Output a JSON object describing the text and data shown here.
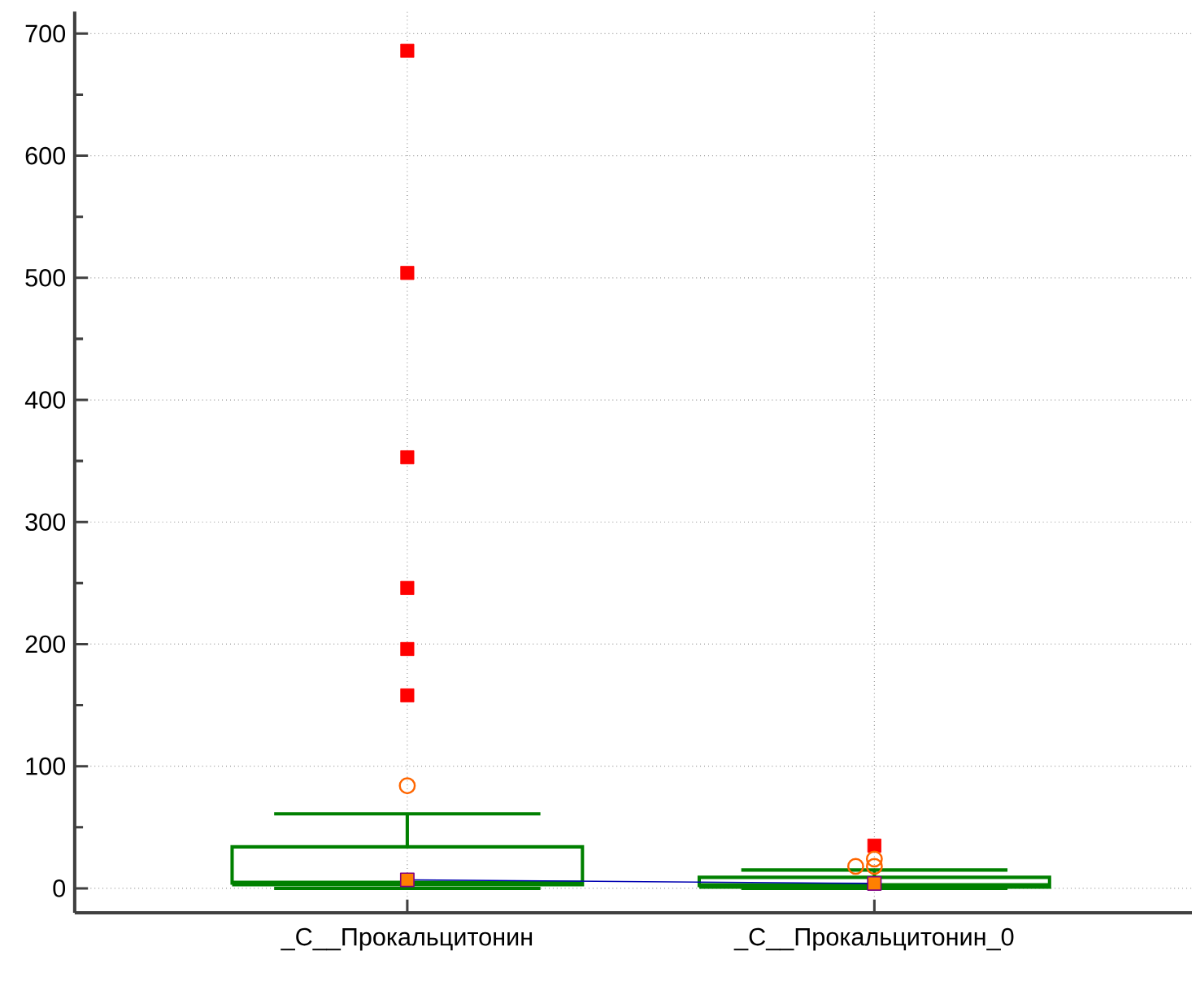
{
  "chart_data": {
    "type": "box",
    "categories": [
      "_C__Прокальцитонин",
      "_C__Прокальцитонин_0"
    ],
    "color": "#008000",
    "boxes": [
      {
        "low": 0,
        "q1": 3,
        "median": 5,
        "q3": 34,
        "high": 61,
        "outliers": [
          158,
          196,
          246,
          353,
          504,
          686
        ]
      },
      {
        "low": 0,
        "q1": 1,
        "median": 3,
        "q3": 9,
        "high": 15,
        "outliers": [
          35
        ]
      }
    ],
    "series": [
      {
        "type": "line",
        "color": "#0000b2",
        "marker": "square",
        "x": [
          "_C__Прокальцитонин",
          "_C__Прокальцитонин_0"
        ],
        "values": [
          7,
          4
        ]
      },
      {
        "type": "scatter",
        "color": "#ff6600",
        "marker": "circle",
        "x": [
          "_C__Прокальцитонин",
          "_C__Прокальцитонин_0",
          "_C__Прокальцитонин_0",
          "_C__Прокальцитонин_0"
        ],
        "values": [
          84,
          18,
          18,
          24
        ]
      }
    ],
    "ylim": [
      -20,
      718
    ],
    "yticks": [
      0,
      100,
      200,
      300,
      400,
      500,
      600,
      700
    ],
    "grid": true
  }
}
